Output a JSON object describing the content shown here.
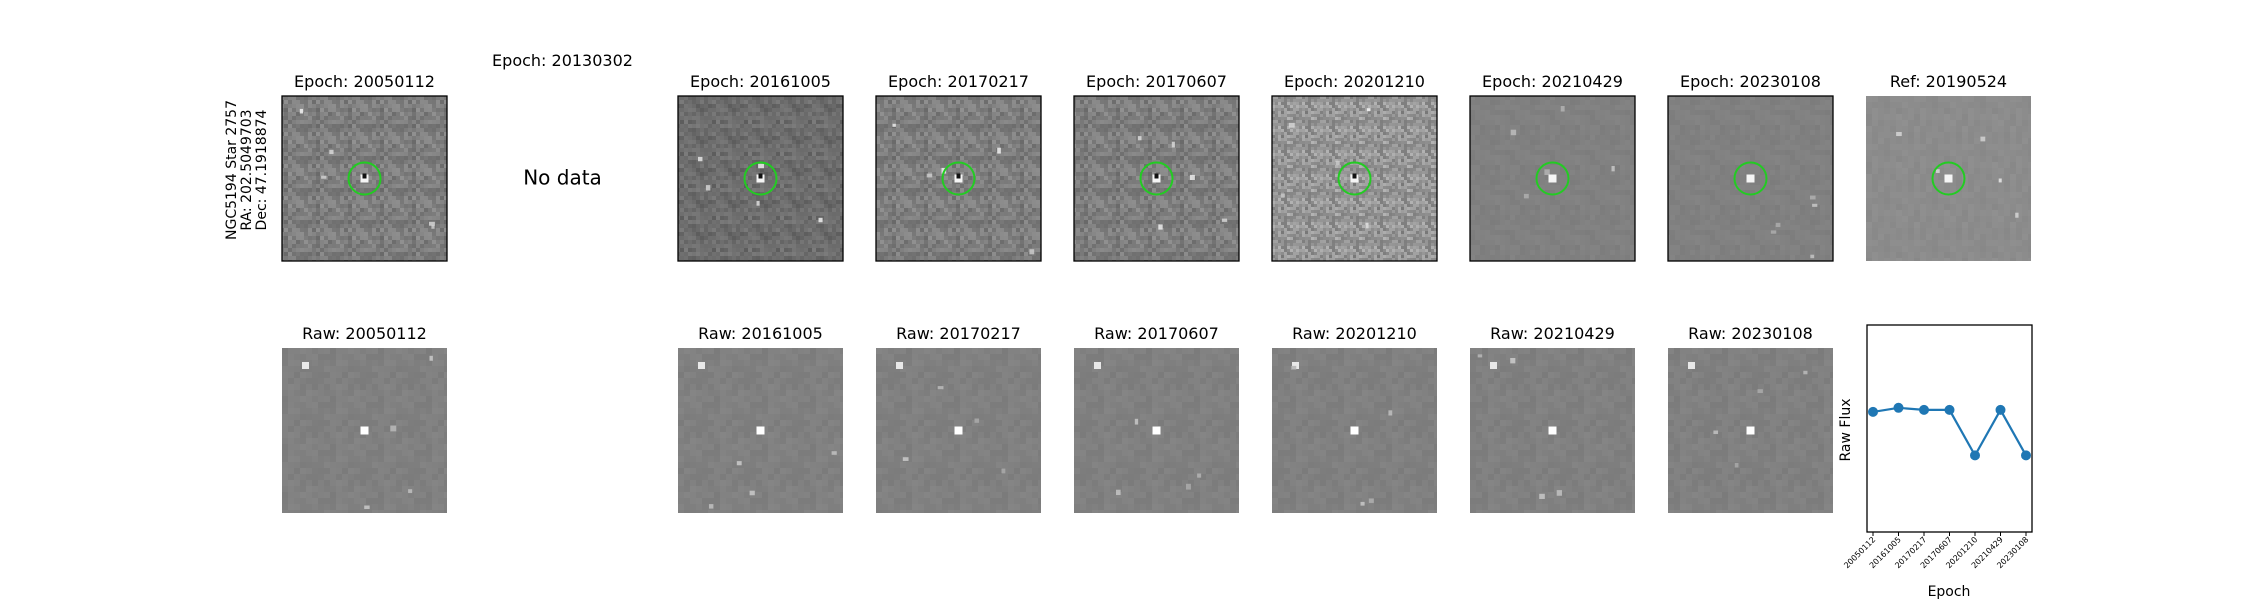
{
  "star_label": {
    "line1": "NGC5194 Star 2757",
    "line2": "RA: 202.5049703",
    "line3": "Dec: 47.1918874"
  },
  "top_row": [
    {
      "title": "Epoch: 20050112",
      "has_data": true,
      "circle": true,
      "style": "diff"
    },
    {
      "title": "Epoch: 20130302",
      "has_data": false,
      "no_data_text": "No data"
    },
    {
      "title": "Epoch: 20161005",
      "has_data": true,
      "circle": true,
      "style": "diff"
    },
    {
      "title": "Epoch: 20170217",
      "has_data": true,
      "circle": true,
      "style": "diff"
    },
    {
      "title": "Epoch: 20170607",
      "has_data": true,
      "circle": true,
      "style": "diff"
    },
    {
      "title": "Epoch: 20201210",
      "has_data": true,
      "circle": true,
      "style": "diff"
    },
    {
      "title": "Epoch: 20210429",
      "has_data": true,
      "circle": true,
      "style": "smooth"
    },
    {
      "title": "Epoch: 20230108",
      "has_data": true,
      "circle": true,
      "style": "smooth"
    },
    {
      "title": "Ref: 20190524",
      "has_data": true,
      "circle": true,
      "style": "ref"
    }
  ],
  "bottom_row": [
    {
      "title": "Raw: 20050112",
      "has_data": true
    },
    {
      "title": "",
      "has_data": false
    },
    {
      "title": "Raw: 20161005",
      "has_data": true
    },
    {
      "title": "Raw: 20170217",
      "has_data": true
    },
    {
      "title": "Raw: 20170607",
      "has_data": true
    },
    {
      "title": "Raw: 20201210",
      "has_data": true
    },
    {
      "title": "Raw: 20210429",
      "has_data": true
    },
    {
      "title": "Raw: 20230108",
      "has_data": true
    }
  ],
  "colors": {
    "circle": "#22cc22",
    "line": "#1f77b4",
    "background": "#ffffff"
  },
  "chart_data": {
    "type": "line",
    "title": "",
    "xlabel": "Epoch",
    "ylabel": "Raw Flux",
    "categories": [
      "20050112",
      "20161005",
      "20170217",
      "20170607",
      "20201210",
      "20210429",
      "20230108"
    ],
    "values": [
      0.58,
      0.6,
      0.59,
      0.59,
      0.37,
      0.59,
      0.37
    ],
    "ylim": [
      0,
      1
    ],
    "grid": false
  }
}
